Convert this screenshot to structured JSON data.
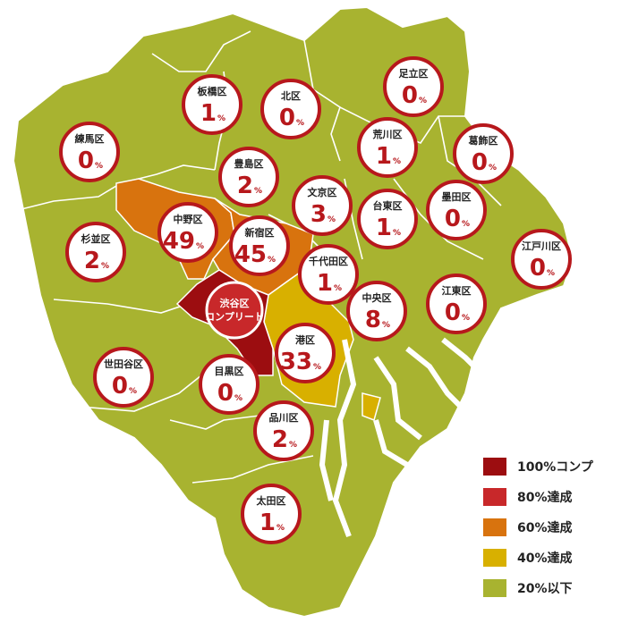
{
  "colors": {
    "land": "#a8b330",
    "border": "#ffffff",
    "complete": "#9c0d10",
    "c80": "#c8282a",
    "c60": "#d8730e",
    "c40": "#d8b000",
    "c20": "#a8b330",
    "label_red": "#b7181c"
  },
  "wards": [
    {
      "id": "adachi",
      "name": "足立区",
      "num": "0",
      "pct": "%"
    },
    {
      "id": "itabashi",
      "name": "板橋区",
      "num": "1",
      "pct": "%"
    },
    {
      "id": "kita",
      "name": "北区",
      "num": "0",
      "pct": "%"
    },
    {
      "id": "nerima",
      "name": "練馬区",
      "num": "0",
      "pct": "%"
    },
    {
      "id": "arakawa",
      "name": "荒川区",
      "num": "1",
      "pct": "%"
    },
    {
      "id": "katsushika",
      "name": "葛飾区",
      "num": "0",
      "pct": "%"
    },
    {
      "id": "toshima",
      "name": "豊島区",
      "num": "2",
      "pct": "%"
    },
    {
      "id": "bunkyo",
      "name": "文京区",
      "num": "3",
      "pct": "%"
    },
    {
      "id": "taito",
      "name": "台東区",
      "num": "1",
      "pct": "%"
    },
    {
      "id": "sumida",
      "name": "墨田区",
      "num": "0",
      "pct": "%"
    },
    {
      "id": "nakano",
      "name": "中野区",
      "num": "49",
      "pct": "%"
    },
    {
      "id": "shinjuku",
      "name": "新宿区",
      "num": "45",
      "pct": "%"
    },
    {
      "id": "suginami",
      "name": "杉並区",
      "num": "2",
      "pct": "%"
    },
    {
      "id": "edogawa",
      "name": "江戸川区",
      "num": "0",
      "pct": "%"
    },
    {
      "id": "chiyoda",
      "name": "千代田区",
      "num": "1",
      "pct": "%"
    },
    {
      "id": "koto",
      "name": "江東区",
      "num": "0",
      "pct": "%"
    },
    {
      "id": "chuo",
      "name": "中央区",
      "num": "8",
      "pct": "%"
    },
    {
      "id": "minato",
      "name": "港区",
      "num": "33",
      "pct": "%"
    },
    {
      "id": "setagaya",
      "name": "世田谷区",
      "num": "0",
      "pct": "%"
    },
    {
      "id": "meguro",
      "name": "目黒区",
      "num": "0",
      "pct": "%"
    },
    {
      "id": "shinagawa",
      "name": "品川区",
      "num": "2",
      "pct": "%"
    },
    {
      "id": "ota",
      "name": "太田区",
      "num": "1",
      "pct": "%"
    }
  ],
  "shibuya": {
    "line1": "渋谷区",
    "line2": "コンプリート"
  },
  "legend": [
    {
      "label": "100%コンプ",
      "color": "#9c0d10"
    },
    {
      "label": "80%達成",
      "color": "#c8282a"
    },
    {
      "label": "60%達成",
      "color": "#d8730e"
    },
    {
      "label": "40%達成",
      "color": "#d8b000"
    },
    {
      "label": "20%以下",
      "color": "#a8b330"
    }
  ]
}
